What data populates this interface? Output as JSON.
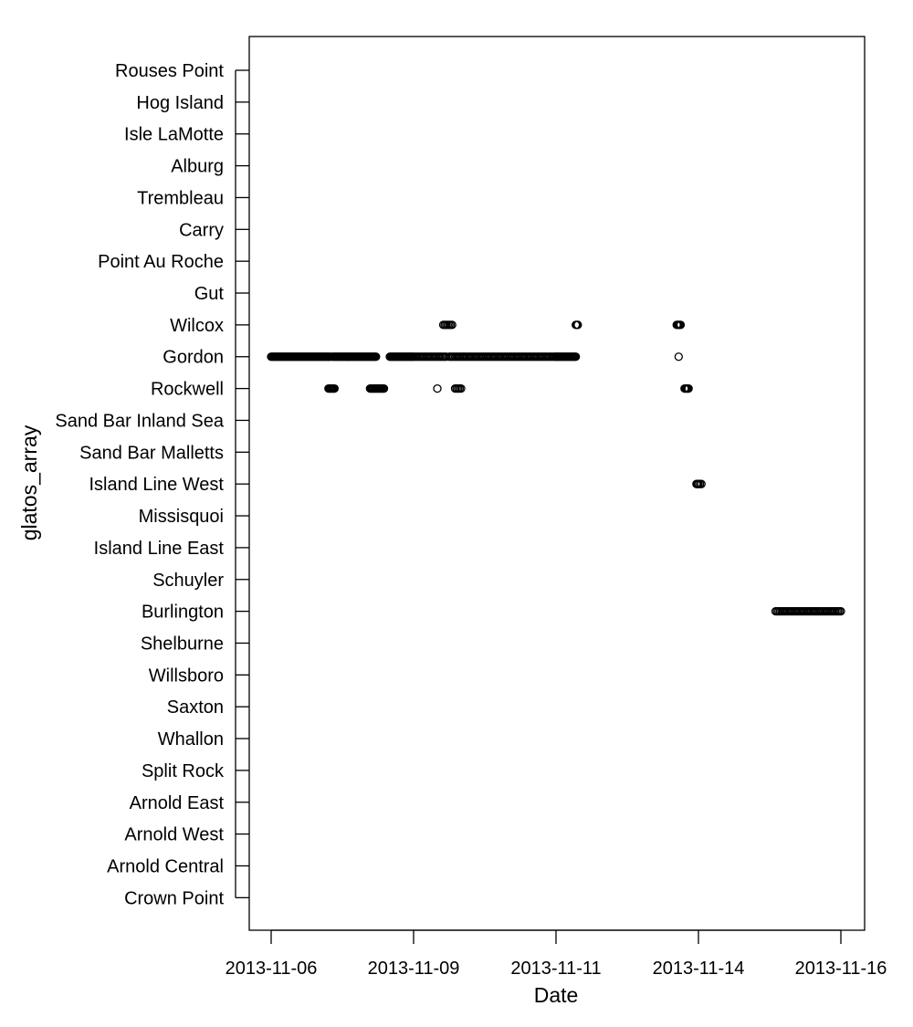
{
  "chart_data": {
    "type": "scatter",
    "title": "",
    "xlabel": "Date",
    "ylabel": "glatos_array",
    "x_ticks": [
      "2013-11-06",
      "2013-11-09",
      "2013-11-11",
      "2013-11-14",
      "2013-11-16"
    ],
    "xlim": [
      "2013-11-05T23:00",
      "2013-11-16T16:00"
    ],
    "categories": [
      "Rouses Point",
      "Hog Island",
      "Isle LaMotte",
      "Alburg",
      "Trembleau",
      "Carry",
      "Point Au Roche",
      "Gut",
      "Wilcox",
      "Gordon",
      "Rockwell",
      "Sand Bar Inland Sea",
      "Sand Bar Malletts",
      "Island Line West",
      "Missisquoi",
      "Island Line East",
      "Schuyler",
      "Burlington",
      "Shelburne",
      "Willsboro",
      "Saxton",
      "Whallon",
      "Split Rock",
      "Arnold East",
      "Arnold West",
      "Arnold Central",
      "Crown Point"
    ],
    "marker": "open-circle",
    "grid": false,
    "legend": "none",
    "detections": [
      {
        "station": "Wilcox",
        "x": [
          "2013-11-09T10:00",
          "2013-11-09T13:00"
        ]
      },
      {
        "station": "Wilcox",
        "x": [
          "2013-11-11T10:00",
          "2013-11-11T11:00"
        ]
      },
      {
        "station": "Wilcox",
        "x": [
          "2013-11-13T13:00",
          "2013-11-13T15:00"
        ]
      },
      {
        "station": "Gordon",
        "x": [
          "2013-11-06T00:00",
          "2013-11-07T06:00"
        ]
      },
      {
        "station": "Gordon",
        "x": [
          "2013-11-07T07:00",
          "2013-11-08T05:00"
        ]
      },
      {
        "station": "Gordon",
        "x": [
          "2013-11-08T12:00",
          "2013-11-09T11:00"
        ]
      },
      {
        "station": "Gordon",
        "x": [
          "2013-11-09T12:00",
          "2013-11-11T00:00"
        ]
      },
      {
        "station": "Gordon",
        "x": [
          "2013-11-11T00:00",
          "2013-11-11T10:00"
        ]
      },
      {
        "station": "Gordon",
        "x": [
          "2013-11-13T14:00"
        ]
      },
      {
        "station": "Rockwell",
        "x": [
          "2013-11-07T05:00",
          "2013-11-07T08:00"
        ]
      },
      {
        "station": "Rockwell",
        "x": [
          "2013-11-08T02:00",
          "2013-11-08T09:00"
        ]
      },
      {
        "station": "Rockwell",
        "x": [
          "2013-11-09T08:00"
        ]
      },
      {
        "station": "Rockwell",
        "x": [
          "2013-11-09T14:00",
          "2013-11-09T16:00"
        ]
      },
      {
        "station": "Rockwell",
        "x": [
          "2013-11-13T17:00",
          "2013-11-13T19:00"
        ]
      },
      {
        "station": "Island Line West",
        "x": [
          "2013-11-13T23:00",
          "2013-11-14T01:00"
        ]
      },
      {
        "station": "Burlington",
        "x": [
          "2013-11-15T02:00",
          "2013-11-16T00:00"
        ]
      }
    ]
  }
}
